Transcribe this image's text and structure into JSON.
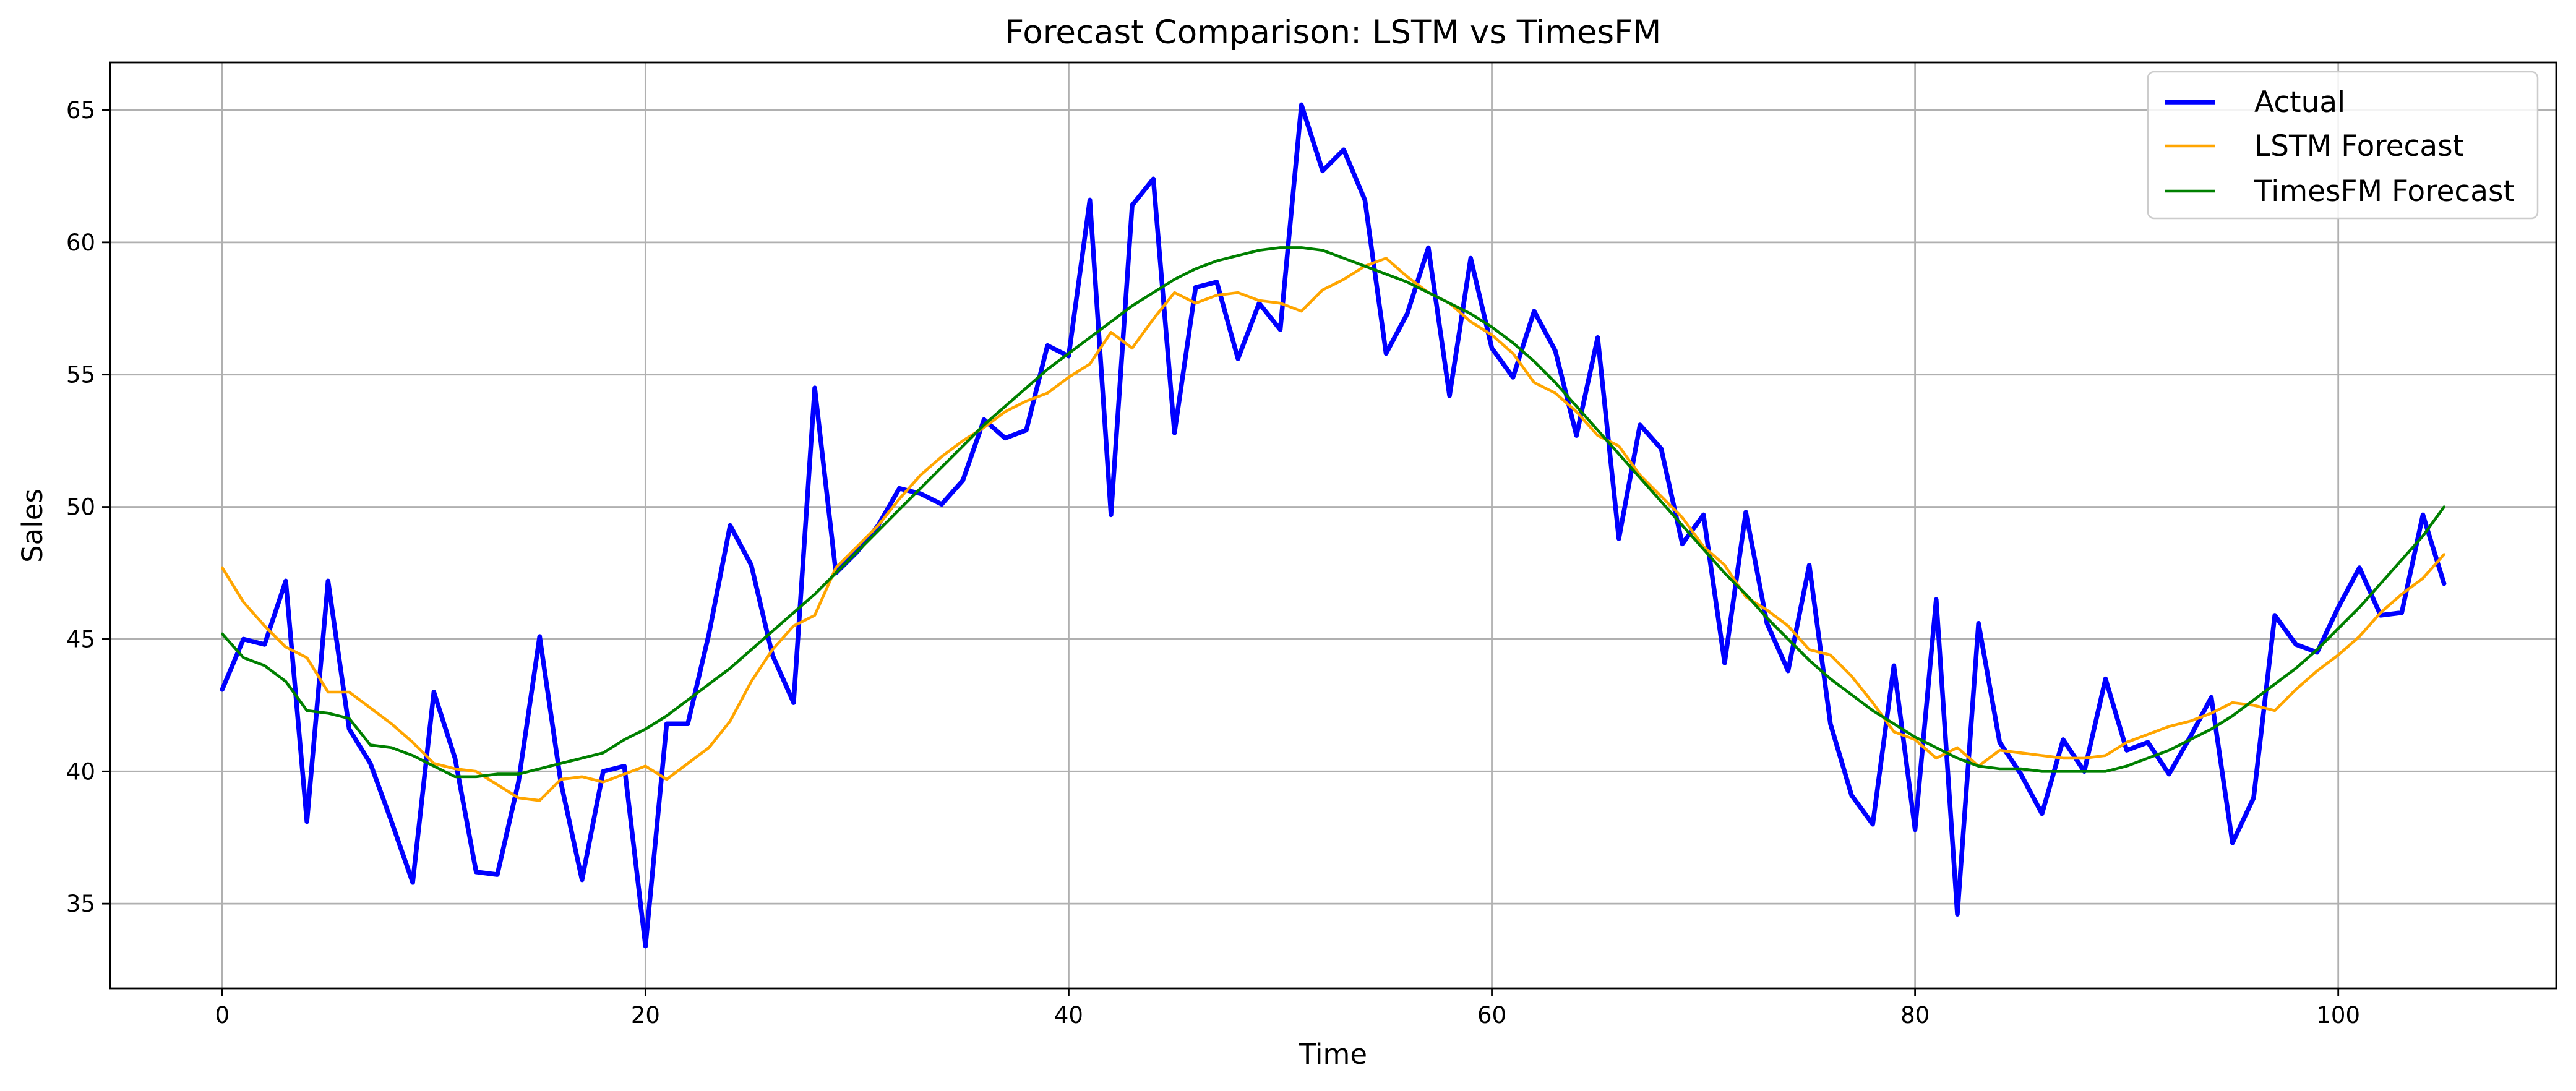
{
  "chart_data": {
    "type": "line",
    "title": "Forecast Comparison: LSTM vs TimesFM",
    "xlabel": "Time",
    "ylabel": "Sales",
    "xlim": [
      -5.3,
      110.3
    ],
    "ylim": [
      31.8,
      66.8
    ],
    "x_ticks": [
      0,
      20,
      40,
      60,
      80,
      100
    ],
    "y_ticks": [
      35,
      40,
      45,
      50,
      55,
      60,
      65
    ],
    "grid": true,
    "legend_position": "top-right",
    "x": [
      0,
      1,
      2,
      3,
      4,
      5,
      6,
      7,
      8,
      9,
      10,
      11,
      12,
      13,
      14,
      15,
      16,
      17,
      18,
      19,
      20,
      21,
      22,
      23,
      24,
      25,
      26,
      27,
      28,
      29,
      30,
      31,
      32,
      33,
      34,
      35,
      36,
      37,
      38,
      39,
      40,
      41,
      42,
      43,
      44,
      45,
      46,
      47,
      48,
      49,
      50,
      51,
      52,
      53,
      54,
      55,
      56,
      57,
      58,
      59,
      60,
      61,
      62,
      63,
      64,
      65,
      66,
      67,
      68,
      69,
      70,
      71,
      72,
      73,
      74,
      75,
      76,
      77,
      78,
      79,
      80,
      81,
      82,
      83,
      84,
      85,
      86,
      87,
      88,
      89,
      90,
      91,
      92,
      93,
      94,
      95,
      96,
      97,
      98,
      99,
      100,
      101,
      102,
      103,
      104,
      105
    ],
    "series": [
      {
        "name": "Actual",
        "color": "#0000ff",
        "width": 7.5,
        "values": [
          43.1,
          45.0,
          44.8,
          47.2,
          38.1,
          47.2,
          41.6,
          40.3,
          38.1,
          35.8,
          43.0,
          40.5,
          36.2,
          36.1,
          39.6,
          45.1,
          39.6,
          35.9,
          40.0,
          40.2,
          33.4,
          41.8,
          41.8,
          45.2,
          49.3,
          47.8,
          44.4,
          42.6,
          54.5,
          47.5,
          48.3,
          49.3,
          50.7,
          50.5,
          50.1,
          51.0,
          53.3,
          52.6,
          52.9,
          56.1,
          55.7,
          61.6,
          49.7,
          61.4,
          62.4,
          52.8,
          58.3,
          58.5,
          55.6,
          57.7,
          56.7,
          65.2,
          62.7,
          63.5,
          61.6,
          55.8,
          57.3,
          59.8,
          54.2,
          59.4,
          56.0,
          54.9,
          57.4,
          55.9,
          52.7,
          56.4,
          48.8,
          53.1,
          52.2,
          48.6,
          49.7,
          44.1,
          49.8,
          45.6,
          43.8,
          47.8,
          41.8,
          39.1,
          38.0,
          44.0,
          37.8,
          46.5,
          34.6,
          45.6,
          41.1,
          39.9,
          38.4,
          41.2,
          40.0,
          43.5,
          40.8,
          41.1,
          39.9,
          41.3,
          42.8,
          37.3,
          39.0,
          45.9,
          44.8,
          44.5,
          46.2,
          47.7,
          45.9,
          46.0,
          49.7,
          47.1
        ]
      },
      {
        "name": "LSTM Forecast",
        "color": "#ffa500",
        "width": 4.6,
        "values": [
          47.7,
          46.4,
          45.5,
          44.7,
          44.3,
          43.0,
          43.0,
          42.4,
          41.8,
          41.1,
          40.3,
          40.1,
          40.0,
          39.5,
          39.0,
          38.9,
          39.7,
          39.8,
          39.6,
          39.9,
          40.2,
          39.7,
          40.3,
          40.9,
          41.9,
          43.4,
          44.6,
          45.5,
          45.9,
          47.7,
          48.5,
          49.3,
          50.3,
          51.2,
          51.9,
          52.5,
          53.0,
          53.6,
          54.0,
          54.3,
          54.9,
          55.4,
          56.6,
          56.0,
          57.1,
          58.1,
          57.7,
          58.0,
          58.1,
          57.8,
          57.7,
          57.4,
          58.2,
          58.6,
          59.1,
          59.4,
          58.7,
          58.1,
          57.7,
          57.0,
          56.5,
          55.8,
          54.7,
          54.3,
          53.6,
          52.7,
          52.3,
          51.2,
          50.4,
          49.6,
          48.5,
          47.8,
          46.6,
          46.1,
          45.5,
          44.6,
          44.4,
          43.6,
          42.6,
          41.5,
          41.2,
          40.5,
          40.9,
          40.2,
          40.8,
          40.7,
          40.6,
          40.5,
          40.5,
          40.6,
          41.1,
          41.4,
          41.7,
          41.9,
          42.2,
          42.6,
          42.5,
          42.3,
          43.1,
          43.8,
          44.4,
          45.1,
          46.0,
          46.7,
          47.3,
          48.2
        ]
      },
      {
        "name": "TimesFM Forecast",
        "color": "#008000",
        "width": 4.6,
        "values": [
          45.2,
          44.3,
          44.0,
          43.4,
          42.3,
          42.2,
          42.0,
          41.0,
          40.9,
          40.6,
          40.2,
          39.8,
          39.8,
          39.9,
          39.9,
          40.1,
          40.3,
          40.5,
          40.7,
          41.2,
          41.6,
          42.1,
          42.7,
          43.3,
          43.9,
          44.6,
          45.3,
          46.0,
          46.7,
          47.5,
          48.3,
          49.1,
          49.9,
          50.7,
          51.5,
          52.3,
          53.1,
          53.8,
          54.5,
          55.2,
          55.8,
          56.4,
          57.0,
          57.6,
          58.1,
          58.6,
          59.0,
          59.3,
          59.5,
          59.7,
          59.8,
          59.8,
          59.7,
          59.4,
          59.1,
          58.8,
          58.5,
          58.1,
          57.7,
          57.3,
          56.8,
          56.2,
          55.5,
          54.7,
          53.8,
          52.9,
          52.0,
          51.1,
          50.2,
          49.3,
          48.4,
          47.5,
          46.7,
          45.8,
          45.0,
          44.2,
          43.5,
          42.9,
          42.3,
          41.8,
          41.3,
          40.9,
          40.5,
          40.2,
          40.1,
          40.1,
          40.0,
          40.0,
          40.0,
          40.0,
          40.2,
          40.5,
          40.8,
          41.2,
          41.6,
          42.1,
          42.7,
          43.3,
          43.9,
          44.6,
          45.4,
          46.2,
          47.1,
          48.0,
          48.9,
          50.0
        ]
      }
    ]
  }
}
